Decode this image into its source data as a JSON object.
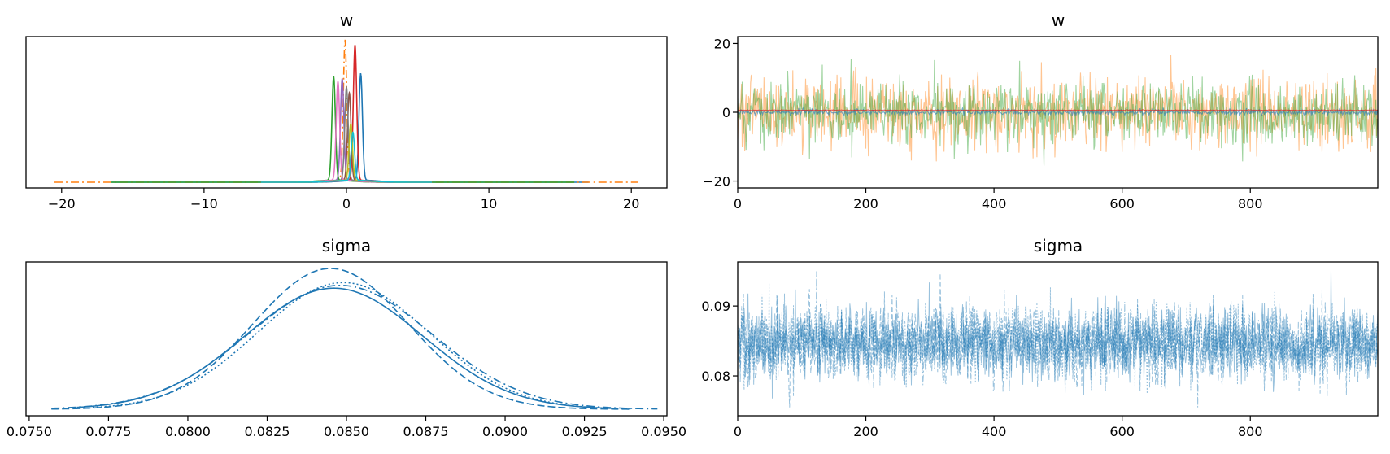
{
  "figure": {
    "panels": [
      "w",
      "w",
      "sigma",
      "sigma"
    ]
  },
  "chart_data": [
    {
      "id": "w-density",
      "type": "line",
      "title": "w",
      "xlabel": "",
      "ylabel": "",
      "xlim": [
        -22.5,
        22.5
      ],
      "x_ticks": [
        -20,
        -10,
        0,
        10,
        20
      ],
      "x_tick_labels": [
        "−20",
        "−10",
        "0",
        "10",
        "20"
      ],
      "y_ticks": [],
      "grid": false,
      "legend": "none",
      "series": [
        {
          "color": "#1f77b4",
          "center": 1.0,
          "width": 0.12,
          "height": 0.76,
          "extent": [
            -16.5,
            17.0
          ],
          "dash": "solid"
        },
        {
          "color": "#ff7f0e",
          "center": -0.1,
          "width": 0.12,
          "height": 1.0,
          "extent": [
            -20.5,
            20.5
          ],
          "dash": "dashdot"
        },
        {
          "color": "#2ca02c",
          "center": -0.9,
          "width": 0.12,
          "height": 0.74,
          "extent": [
            -16.5,
            16.0
          ],
          "dash": "solid"
        },
        {
          "color": "#d62728",
          "center": 0.6,
          "width": 0.12,
          "height": 0.96,
          "extent": [
            -6,
            6
          ],
          "dash": "solid"
        },
        {
          "color": "#9467bd",
          "center": -0.3,
          "width": 0.12,
          "height": 0.72,
          "extent": [
            -6,
            6
          ],
          "dash": "solid"
        },
        {
          "color": "#8c564b",
          "center": 0.2,
          "width": 0.12,
          "height": 0.62,
          "extent": [
            -6,
            6
          ],
          "dash": "solid"
        },
        {
          "color": "#e377c2",
          "center": -0.6,
          "width": 0.12,
          "height": 0.7,
          "extent": [
            -6,
            6
          ],
          "dash": "solid"
        },
        {
          "color": "#7f7f7f",
          "center": 0.0,
          "width": 0.12,
          "height": 0.66,
          "extent": [
            -6,
            6
          ],
          "dash": "solid"
        },
        {
          "color": "#bcbd22",
          "center": 0.3,
          "width": 0.12,
          "height": 0.4,
          "extent": [
            -6,
            6
          ],
          "dash": "solid"
        },
        {
          "color": "#17becf",
          "center": 0.45,
          "width": 0.12,
          "height": 0.34,
          "extent": [
            -6,
            6
          ],
          "dash": "solid"
        }
      ]
    },
    {
      "id": "w-trace",
      "type": "line",
      "title": "w",
      "xlabel": "",
      "ylabel": "",
      "xlim": [
        0,
        999
      ],
      "ylim": [
        -22,
        22
      ],
      "x_ticks": [
        0,
        200,
        400,
        600,
        800
      ],
      "x_tick_labels": [
        "0",
        "200",
        "400",
        "600",
        "800"
      ],
      "y_ticks": [
        -20,
        0,
        20
      ],
      "y_tick_labels": [
        "−20",
        "0",
        "20"
      ],
      "grid": false,
      "legend": "none",
      "draws": 1000,
      "series": [
        {
          "color": "#ff7f0e",
          "mean": 0,
          "sd": 5.2,
          "max_abs": 20.5,
          "opacity": 0.45
        },
        {
          "color": "#2ca02c",
          "mean": 0,
          "sd": 4.6,
          "max_abs": 17.5,
          "opacity": 0.45
        },
        {
          "color": "#1f77b4",
          "mean": 0,
          "sd": 0.4,
          "max_abs": 1.2,
          "opacity": 0.6
        },
        {
          "color": "#d62728",
          "mean": 0.6,
          "sd": 0.05,
          "max_abs": 0.8,
          "opacity": 0.7
        }
      ]
    },
    {
      "id": "sigma-density",
      "type": "line",
      "title": "sigma",
      "xlabel": "",
      "ylabel": "",
      "xlim": [
        0.0749,
        0.0951
      ],
      "x_ticks": [
        0.075,
        0.0775,
        0.08,
        0.0825,
        0.085,
        0.0875,
        0.09,
        0.0925,
        0.095
      ],
      "x_tick_labels": [
        "0.0750",
        "0.0775",
        "0.0800",
        "0.0825",
        "0.0850",
        "0.0875",
        "0.0900",
        "0.0925",
        "0.0950"
      ],
      "y_ticks": [],
      "grid": false,
      "legend": "none",
      "series": [
        {
          "color": "#1f77b4",
          "mean": 0.0846,
          "sd": 0.0028,
          "height": 0.86,
          "extent": [
            0.0765,
            0.0935
          ],
          "dash": "solid"
        },
        {
          "color": "#1f77b4",
          "mean": 0.0845,
          "sd": 0.00245,
          "height": 1.0,
          "extent": [
            0.0757,
            0.094
          ],
          "dash": "dashed"
        },
        {
          "color": "#1f77b4",
          "mean": 0.0848,
          "sd": 0.0029,
          "height": 0.88,
          "extent": [
            0.0757,
            0.0948
          ],
          "dash": "dashdot"
        },
        {
          "color": "#1f77b4",
          "mean": 0.0849,
          "sd": 0.0027,
          "height": 0.9,
          "extent": [
            0.077,
            0.094
          ],
          "dash": "dotted"
        }
      ]
    },
    {
      "id": "sigma-trace",
      "type": "line",
      "title": "sigma",
      "xlabel": "",
      "ylabel": "",
      "xlim": [
        0,
        999
      ],
      "ylim": [
        0.0743,
        0.0963
      ],
      "x_ticks": [
        0,
        200,
        400,
        600,
        800
      ],
      "x_tick_labels": [
        "0",
        "200",
        "400",
        "600",
        "800"
      ],
      "y_ticks": [
        0.08,
        0.09
      ],
      "y_tick_labels": [
        "0.08",
        "0.09"
      ],
      "grid": false,
      "legend": "none",
      "draws": 1000,
      "series": [
        {
          "color": "#1f77b4",
          "mean": 0.0847,
          "sd": 0.0026,
          "min": 0.0755,
          "max": 0.095,
          "opacity": 0.45
        }
      ]
    }
  ]
}
